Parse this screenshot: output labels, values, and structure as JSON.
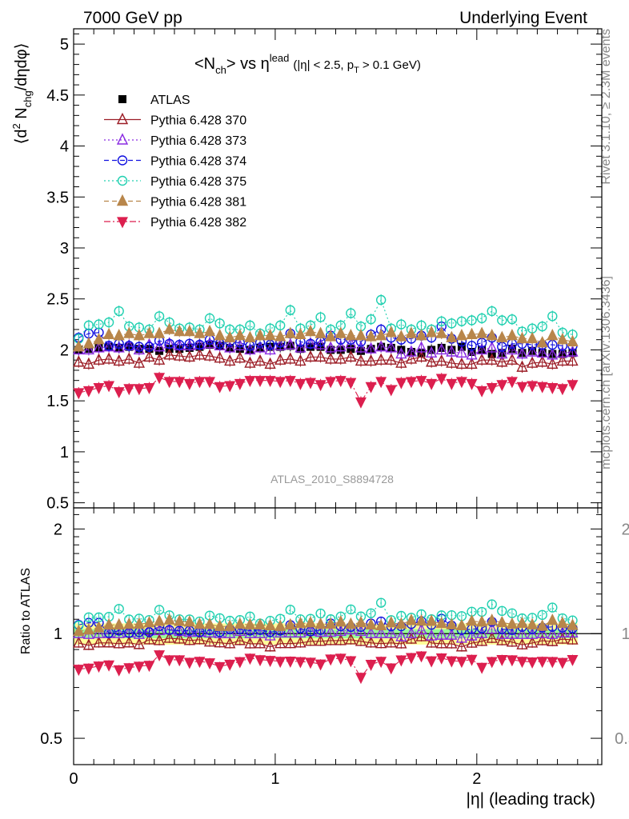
{
  "header": {
    "left": "7000 GeV pp",
    "right": "Underlying Event"
  },
  "side": {
    "right_top": "Rivet 3.1.10, ≥ 2.3M events",
    "right_bottom": "mcplots.cern.ch [arXiv:1306.3436]"
  },
  "colors": {
    "ATLAS": "#000000",
    "p370": "#9b1c25",
    "p373": "#8a2be2",
    "p374": "#1010e0",
    "p375": "#20d0b0",
    "p381": "#b8864b",
    "p382": "#dc1f4e",
    "band_outer": "#ffff99",
    "band_inner": "#99ff99"
  },
  "chart_data": {
    "type": "scatter",
    "title": "<N_ch> vs η^lead (|η| < 2.5, p_T > 0.1 GeV)",
    "title_parts": {
      "a": "<N",
      "a_sub": "ch",
      "b": "> vs η",
      "b_sup": "lead",
      "c": "(|η| < 2.5, p",
      "c_sub": "T",
      "d": "> 0.1 GeV)"
    },
    "ylabel": "⟨d² N_chg/dηdφ⟩",
    "ylabel_parts": {
      "a": "⟨d",
      "a_sup": "2",
      "b": " N",
      "b_sub": "chg",
      "c": "/dηdφ⟩"
    },
    "ratio_ylabel": "Ratio to ATLAS",
    "xlabel": "|η| (leading track)",
    "watermark": "ATLAS_2010_S8894728",
    "xlim": [
      0,
      2.5
    ],
    "ylim": [
      0.45,
      5.15
    ],
    "ratio_ylim": [
      0.42,
      2.3
    ],
    "x_ticks": [
      0,
      1,
      2
    ],
    "y_ticks": [
      0.5,
      1,
      1.5,
      2,
      2.5,
      3,
      3.5,
      4,
      4.5,
      5
    ],
    "ratio_y_ticks": [
      0.5,
      1,
      2
    ],
    "legend_position": "top-left",
    "x": [
      0.025,
      0.075,
      0.125,
      0.175,
      0.225,
      0.275,
      0.325,
      0.375,
      0.425,
      0.475,
      0.525,
      0.575,
      0.625,
      0.675,
      0.725,
      0.775,
      0.825,
      0.875,
      0.925,
      0.975,
      1.025,
      1.075,
      1.125,
      1.175,
      1.225,
      1.275,
      1.325,
      1.375,
      1.425,
      1.475,
      1.525,
      1.575,
      1.625,
      1.675,
      1.725,
      1.775,
      1.825,
      1.875,
      1.925,
      1.975,
      2.025,
      2.075,
      2.125,
      2.175,
      2.225,
      2.275,
      2.325,
      2.375,
      2.425,
      2.475
    ],
    "series": [
      {
        "name": "ATLAS",
        "key": "ATLAS",
        "marker": "square",
        "line": "none",
        "values": [
          2.0,
          2.01,
          2.02,
          2.03,
          2.02,
          2.03,
          2.01,
          2.01,
          1.99,
          2.01,
          2.01,
          2.02,
          2.03,
          2.05,
          2.04,
          2.02,
          2.01,
          2.0,
          2.02,
          2.03,
          2.03,
          2.04,
          2.01,
          2.03,
          2.03,
          2.0,
          2.0,
          2.01,
          1.99,
          2.01,
          2.03,
          2.02,
          2.0,
          1.98,
          1.97,
          2.0,
          2.02,
          2.0,
          2.03,
          1.98,
          2.0,
          1.96,
          1.97,
          2.01,
          1.97,
          1.99,
          1.97,
          1.96,
          1.96,
          1.97
        ]
      },
      {
        "name": "Pythia 6.428 370",
        "key": "p370",
        "marker": "triangle-up-open",
        "line": "solid",
        "values": [
          1.88,
          1.86,
          1.9,
          1.91,
          1.89,
          1.91,
          1.87,
          1.93,
          1.9,
          1.95,
          1.94,
          1.93,
          1.95,
          1.94,
          1.92,
          1.89,
          1.92,
          1.87,
          1.89,
          1.86,
          1.9,
          1.91,
          1.89,
          1.93,
          1.93,
          1.91,
          1.91,
          1.93,
          1.89,
          1.89,
          1.9,
          1.9,
          1.87,
          1.91,
          1.93,
          1.88,
          1.89,
          1.87,
          1.86,
          1.86,
          1.9,
          1.9,
          1.88,
          1.9,
          1.83,
          1.87,
          1.88,
          1.86,
          1.89,
          1.89
        ]
      },
      {
        "name": "Pythia 6.428 373",
        "key": "p373",
        "marker": "triangle-up-open",
        "line": "dotted",
        "values": [
          2.0,
          2.0,
          2.02,
          2.03,
          2.02,
          2.04,
          2.0,
          2.05,
          2.03,
          2.06,
          2.04,
          2.04,
          2.05,
          2.06,
          2.04,
          2.02,
          2.04,
          2.0,
          2.02,
          2.0,
          2.04,
          2.05,
          2.02,
          2.06,
          2.05,
          2.02,
          2.03,
          2.06,
          2.02,
          2.01,
          2.03,
          2.02,
          1.96,
          1.98,
          2.02,
          1.97,
          2.0,
          1.98,
          1.97,
          1.95,
          2.0,
          2.02,
          1.96,
          2.0,
          1.96,
          1.98,
          1.97,
          1.95,
          1.97,
          1.98
        ]
      },
      {
        "name": "Pythia 6.428 374",
        "key": "p374",
        "marker": "circle-open",
        "line": "dashed",
        "values": [
          2.12,
          2.16,
          2.17,
          2.04,
          2.06,
          2.04,
          2.03,
          2.03,
          2.09,
          2.06,
          2.05,
          2.06,
          2.05,
          2.1,
          2.06,
          2.08,
          2.07,
          2.04,
          2.07,
          2.05,
          2.07,
          2.16,
          2.08,
          2.06,
          2.08,
          2.14,
          2.1,
          2.1,
          2.08,
          2.15,
          2.2,
          2.12,
          2.1,
          2.11,
          2.14,
          2.12,
          2.23,
          2.11,
          2.08,
          2.04,
          2.07,
          2.12,
          2.03,
          2.06,
          2.06,
          2.05,
          2.05,
          2.05,
          2.04,
          2.04
        ]
      },
      {
        "name": "Pythia 6.428 375",
        "key": "p375",
        "marker": "circle-open",
        "line": "dotted",
        "values": [
          2.11,
          2.24,
          2.25,
          2.27,
          2.38,
          2.23,
          2.22,
          2.2,
          2.33,
          2.27,
          2.21,
          2.22,
          2.2,
          2.31,
          2.26,
          2.2,
          2.2,
          2.24,
          2.16,
          2.21,
          2.24,
          2.39,
          2.21,
          2.24,
          2.32,
          2.2,
          2.24,
          2.36,
          2.23,
          2.3,
          2.49,
          2.21,
          2.25,
          2.2,
          2.24,
          2.2,
          2.28,
          2.26,
          2.28,
          2.29,
          2.31,
          2.38,
          2.29,
          2.3,
          2.18,
          2.21,
          2.23,
          2.33,
          2.17,
          2.15
        ]
      },
      {
        "name": "Pythia 6.428 381",
        "key": "p381",
        "marker": "triangle-up-filled",
        "line": "dashed",
        "values": [
          2.03,
          2.06,
          2.1,
          2.15,
          2.14,
          2.16,
          2.14,
          2.16,
          2.16,
          2.2,
          2.18,
          2.18,
          2.16,
          2.18,
          2.14,
          2.12,
          2.14,
          2.12,
          2.14,
          2.14,
          2.13,
          2.16,
          2.15,
          2.18,
          2.16,
          2.13,
          2.16,
          2.14,
          2.14,
          2.13,
          2.14,
          2.17,
          2.13,
          2.16,
          2.14,
          2.17,
          2.16,
          2.12,
          2.14,
          2.15,
          2.16,
          2.14,
          2.12,
          2.14,
          2.11,
          2.11,
          2.07,
          2.14,
          2.1,
          2.08
        ]
      },
      {
        "name": "Pythia 6.428 382",
        "key": "p382",
        "marker": "triangle-down-filled",
        "line": "dashdot",
        "values": [
          1.58,
          1.6,
          1.63,
          1.65,
          1.59,
          1.62,
          1.62,
          1.63,
          1.73,
          1.69,
          1.69,
          1.67,
          1.69,
          1.69,
          1.64,
          1.65,
          1.67,
          1.7,
          1.7,
          1.7,
          1.69,
          1.7,
          1.67,
          1.68,
          1.66,
          1.69,
          1.7,
          1.68,
          1.49,
          1.64,
          1.69,
          1.61,
          1.68,
          1.69,
          1.7,
          1.67,
          1.72,
          1.67,
          1.69,
          1.67,
          1.6,
          1.63,
          1.66,
          1.69,
          1.64,
          1.65,
          1.64,
          1.63,
          1.62,
          1.66
        ]
      }
    ],
    "ratio_band": {
      "outer": 0.07,
      "inner": 0.03
    }
  }
}
